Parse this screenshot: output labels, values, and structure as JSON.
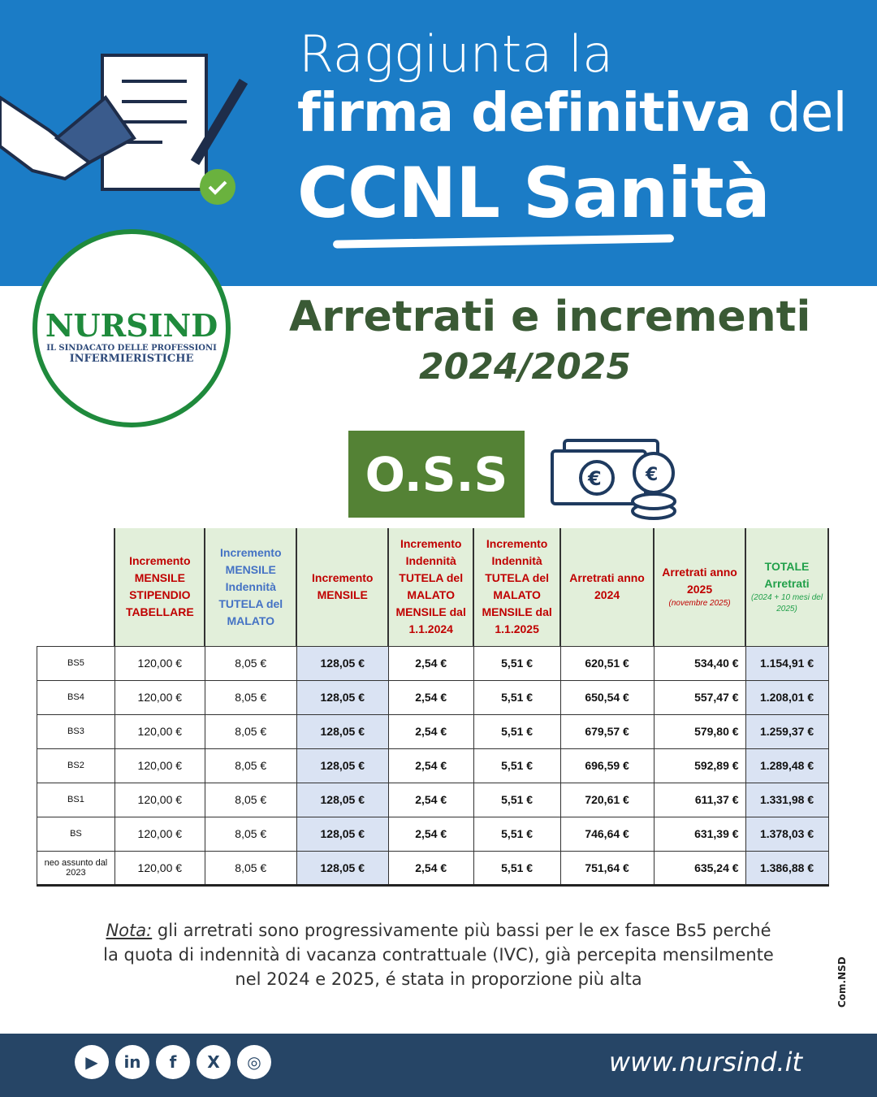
{
  "header": {
    "line1": "Raggiunta la",
    "line2_bold": "firma definitiva",
    "line2_rest": " del",
    "line3": "CCNL Sanità"
  },
  "logo": {
    "name": "NURSIND",
    "tagline1": "IL SINDACATO DELLE PROFESSIONI",
    "tagline2": "INFERMIERISTICHE"
  },
  "subtitle": {
    "line1": "Arretrati e incrementi",
    "line2": "2024/2025"
  },
  "badge": "O.S.S",
  "table": {
    "headers": [
      {
        "text": "Incremento MENSILE STIPENDIO TABELLARE",
        "note": "",
        "color": "red"
      },
      {
        "text": "Incremento MENSILE Indennità TUTELA del MALATO",
        "note": "",
        "color": "blue"
      },
      {
        "text": "Incremento MENSILE",
        "note": "",
        "color": "red"
      },
      {
        "text": "Incremento Indennità TUTELA del MALATO MENSILE dal 1.1.2024",
        "note": "",
        "color": "red"
      },
      {
        "text": "Incremento Indennità TUTELA del MALATO MENSILE dal 1.1.2025",
        "note": "",
        "color": "red"
      },
      {
        "text": "Arretrati anno 2024",
        "note": "",
        "color": "red"
      },
      {
        "text": "Arretrati anno 2025",
        "note": "(novembre 2025)",
        "color": "red"
      },
      {
        "text": "TOTALE Arretrati",
        "note": "(2024 + 10 mesi del 2025)",
        "color": "green"
      }
    ],
    "rows": [
      [
        "BS5",
        "120,00 €",
        "8,05 €",
        "128,05 €",
        "2,54 €",
        "5,51 €",
        "620,51 €",
        "534,40 €",
        "1.154,91 €"
      ],
      [
        "BS4",
        "120,00 €",
        "8,05 €",
        "128,05 €",
        "2,54 €",
        "5,51 €",
        "650,54 €",
        "557,47 €",
        "1.208,01 €"
      ],
      [
        "BS3",
        "120,00 €",
        "8,05 €",
        "128,05 €",
        "2,54 €",
        "5,51 €",
        "679,57 €",
        "579,80 €",
        "1.259,37 €"
      ],
      [
        "BS2",
        "120,00 €",
        "8,05 €",
        "128,05 €",
        "2,54 €",
        "5,51 €",
        "696,59 €",
        "592,89 €",
        "1.289,48 €"
      ],
      [
        "BS1",
        "120,00 €",
        "8,05 €",
        "128,05 €",
        "2,54 €",
        "5,51 €",
        "720,61 €",
        "611,37 €",
        "1.331,98 €"
      ],
      [
        "BS",
        "120,00 €",
        "8,05 €",
        "128,05 €",
        "2,54 €",
        "5,51 €",
        "746,64 €",
        "631,39 €",
        "1.378,03 €"
      ],
      [
        "neo assunto dal 2023",
        "120,00 €",
        "8,05 €",
        "128,05 €",
        "2,54 €",
        "5,51 €",
        "751,64 €",
        "635,24 €",
        "1.386,88 €"
      ]
    ]
  },
  "note": {
    "label": "Nota:",
    "l1": " gli arretrati sono progressivamente più bassi per le ex fasce Bs5 perché",
    "l2": "la quota di indennità di vacanza contrattuale (IVC), già percepita mensilmente",
    "l3": "nel 2024 e 2025, é stata in proporzione più alta"
  },
  "side_text": "Com.NSD",
  "footer": {
    "url": "www.nursind.it",
    "social": [
      "youtube-icon",
      "linkedin-icon",
      "facebook-icon",
      "x-icon",
      "instagram-icon"
    ]
  },
  "colors": {
    "header_blue": "#1b7cc6",
    "green": "#548235",
    "footer": "#264566"
  }
}
